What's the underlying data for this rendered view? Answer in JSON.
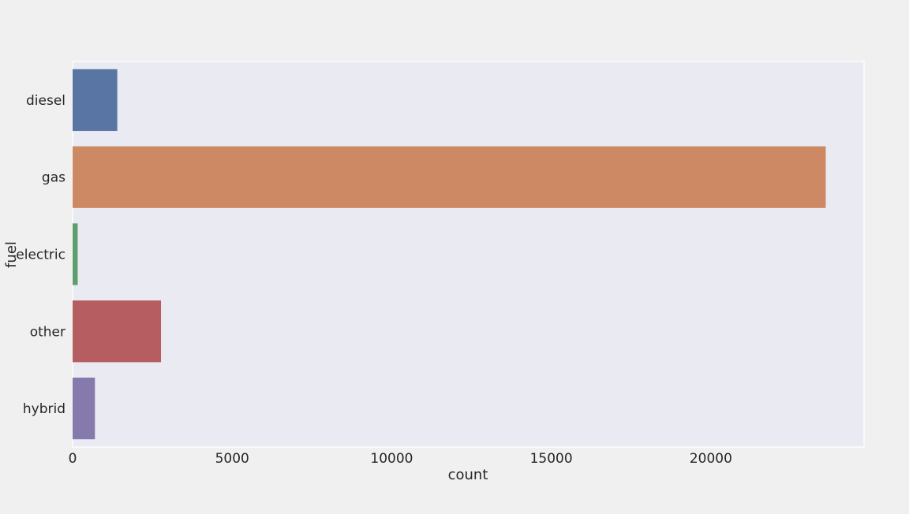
{
  "chart_data": {
    "type": "bar",
    "orientation": "horizontal",
    "title": "",
    "xlabel": "count",
    "ylabel": "fuel",
    "categories": [
      "diesel",
      "gas",
      "electric",
      "other",
      "hybrid"
    ],
    "values": [
      1400,
      23600,
      160,
      2770,
      700
    ],
    "colors": [
      "#5875a4",
      "#cc8963",
      "#5f9e6e",
      "#b55d60",
      "#857aab"
    ],
    "xlim": [
      0,
      24800
    ],
    "xticks": [
      0,
      5000,
      10000,
      15000,
      20000
    ],
    "xtick_labels": [
      "0",
      "5000",
      "10000",
      "15000",
      "20000"
    ],
    "grid": false,
    "background_color": "#eaeaf2"
  }
}
